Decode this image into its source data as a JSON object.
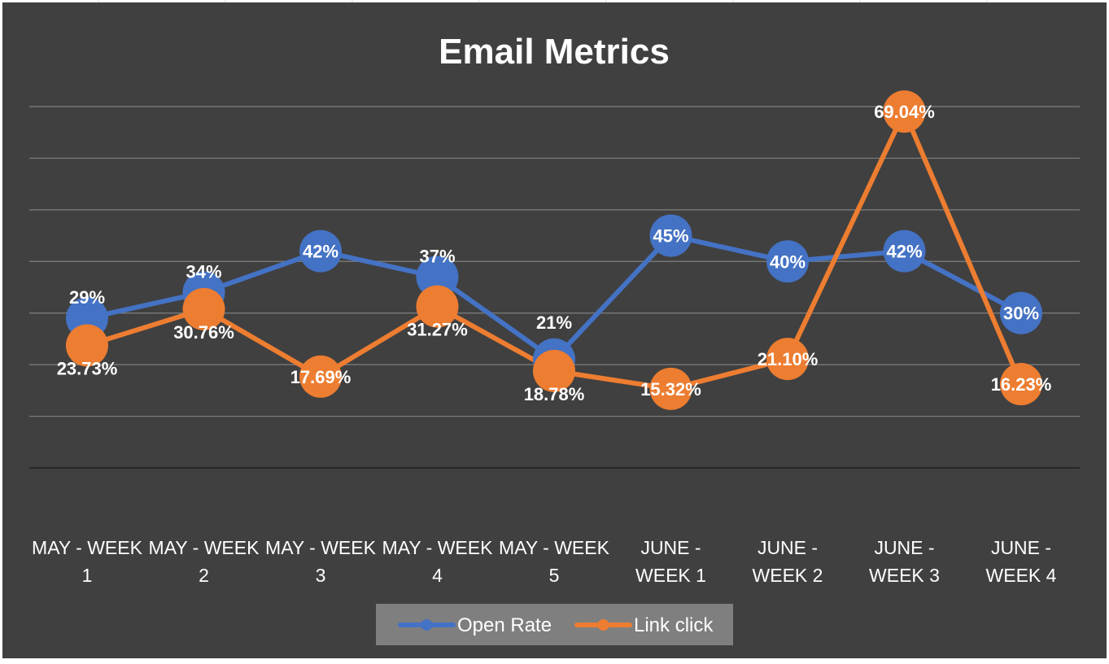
{
  "chart_data": {
    "type": "line",
    "title": "Email Metrics",
    "xlabel": "",
    "ylabel": "",
    "ylim": [
      0,
      70
    ],
    "grid": true,
    "legend_position": "bottom",
    "categories": [
      [
        "MAY - WEEK",
        "1"
      ],
      [
        "MAY - WEEK",
        "2"
      ],
      [
        "MAY - WEEK",
        "3"
      ],
      [
        "MAY - WEEK",
        "4"
      ],
      [
        "MAY - WEEK",
        "5"
      ],
      [
        "JUNE -",
        "WEEK 1"
      ],
      [
        "JUNE -",
        "WEEK 2"
      ],
      [
        "JUNE -",
        "WEEK 3"
      ],
      [
        "JUNE -",
        "WEEK 4"
      ]
    ],
    "series": [
      {
        "name": "Open Rate",
        "color": "#4472C4",
        "values": [
          29,
          34,
          42,
          37,
          21,
          45,
          40,
          42,
          30
        ],
        "labels": [
          "29%",
          "34%",
          "42%",
          "37%",
          "21%",
          "45%",
          "40%",
          "42%",
          "30%"
        ]
      },
      {
        "name": "Link click",
        "color": "#ED7D31",
        "values": [
          23.73,
          30.76,
          17.69,
          31.27,
          18.78,
          15.32,
          21.1,
          69.04,
          16.23
        ],
        "labels": [
          "23.73%",
          "30.76%",
          "17.69%",
          "31.27%",
          "18.78%",
          "15.32%",
          "21.10%",
          "69.04%",
          "16.23%"
        ]
      }
    ]
  },
  "colors": {
    "background": "#404040",
    "gridline": "#7f7f7f",
    "axis": "#1e1e1e",
    "text": "#ffffff",
    "legend_bg": "#7f7f7f",
    "sheet": "#ffffff",
    "sheet_grid": "#d9d9d9"
  }
}
